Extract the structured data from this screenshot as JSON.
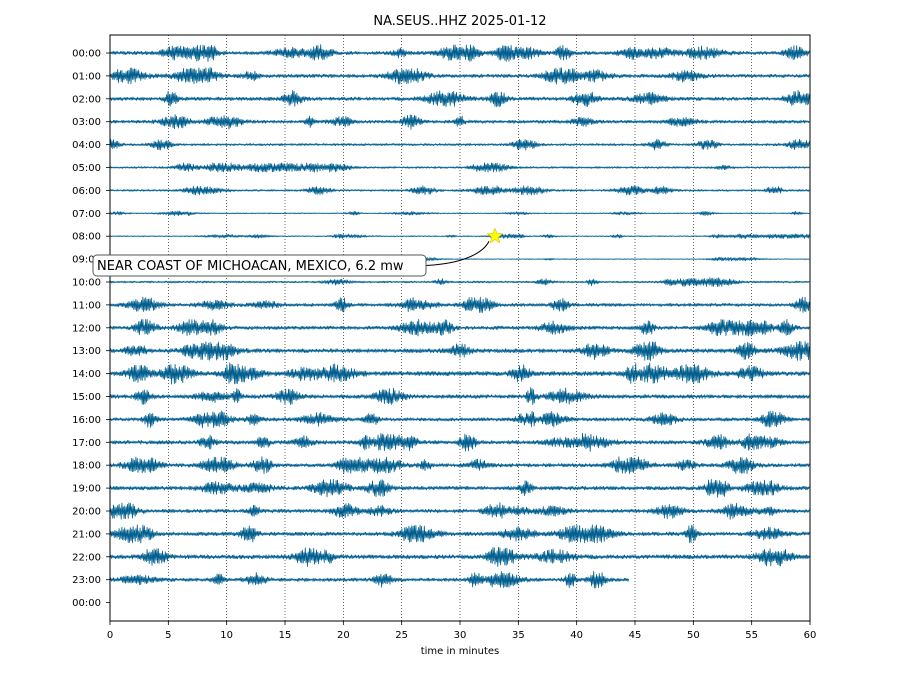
{
  "chart_data": {
    "type": "line",
    "title": "NA.SEUS..HHZ 2025-01-12",
    "xlabel": "time in minutes",
    "ylabel": "",
    "xlim": [
      0,
      60
    ],
    "x_ticks": [
      0,
      5,
      10,
      15,
      20,
      25,
      30,
      35,
      40,
      45,
      50,
      55,
      60
    ],
    "grid": "vertical dotted lines at x ticks",
    "trace_color": "#005f8f",
    "rows": [
      {
        "label": "00:00",
        "amplitude": 0.55,
        "end_minute": 60
      },
      {
        "label": "01:00",
        "amplitude": 0.55,
        "end_minute": 60
      },
      {
        "label": "02:00",
        "amplitude": 0.55,
        "end_minute": 60
      },
      {
        "label": "03:00",
        "amplitude": 0.5,
        "end_minute": 60
      },
      {
        "label": "04:00",
        "amplitude": 0.35,
        "end_minute": 60
      },
      {
        "label": "05:00",
        "amplitude": 0.3,
        "end_minute": 60
      },
      {
        "label": "06:00",
        "amplitude": 0.3,
        "end_minute": 60
      },
      {
        "label": "07:00",
        "amplitude": 0.15,
        "end_minute": 60
      },
      {
        "label": "08:00",
        "amplitude": 0.15,
        "end_minute": 60
      },
      {
        "label": "09:00",
        "amplitude": 0.12,
        "end_minute": 60
      },
      {
        "label": "10:00",
        "amplitude": 0.3,
        "end_minute": 60
      },
      {
        "label": "11:00",
        "amplitude": 0.5,
        "end_minute": 60
      },
      {
        "label": "12:00",
        "amplitude": 0.55,
        "end_minute": 60
      },
      {
        "label": "13:00",
        "amplitude": 0.65,
        "end_minute": 60
      },
      {
        "label": "14:00",
        "amplitude": 0.7,
        "end_minute": 60
      },
      {
        "label": "15:00",
        "amplitude": 0.6,
        "end_minute": 60
      },
      {
        "label": "16:00",
        "amplitude": 0.55,
        "end_minute": 60
      },
      {
        "label": "17:00",
        "amplitude": 0.6,
        "end_minute": 60
      },
      {
        "label": "18:00",
        "amplitude": 0.55,
        "end_minute": 60
      },
      {
        "label": "19:00",
        "amplitude": 0.6,
        "end_minute": 60
      },
      {
        "label": "20:00",
        "amplitude": 0.55,
        "end_minute": 60
      },
      {
        "label": "21:00",
        "amplitude": 0.6,
        "end_minute": 60
      },
      {
        "label": "22:00",
        "amplitude": 0.65,
        "end_minute": 60
      },
      {
        "label": "23:00",
        "amplitude": 0.55,
        "end_minute": 44.5
      },
      {
        "label": "00:00",
        "amplitude": 0,
        "end_minute": 0
      }
    ],
    "event": {
      "label": "NEAR COAST OF MICHOACAN, MEXICO, 6.2 mw",
      "minute": 33,
      "row_label": "08:00",
      "marker": "star",
      "marker_color": "#ffff00"
    }
  }
}
